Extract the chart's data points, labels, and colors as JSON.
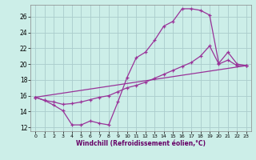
{
  "xlabel": "Windchill (Refroidissement éolien,°C)",
  "background_color": "#cceee8",
  "grid_color": "#aacccc",
  "line_color": "#993399",
  "xlim": [
    -0.5,
    23.5
  ],
  "ylim": [
    11.5,
    27.5
  ],
  "yticks": [
    12,
    14,
    16,
    18,
    20,
    22,
    24,
    26
  ],
  "xticks": [
    0,
    1,
    2,
    3,
    4,
    5,
    6,
    7,
    8,
    9,
    10,
    11,
    12,
    13,
    14,
    15,
    16,
    17,
    18,
    19,
    20,
    21,
    22,
    23
  ],
  "line1_x": [
    0,
    1,
    2,
    3,
    4,
    5,
    6,
    7,
    8,
    9,
    10,
    11,
    12,
    13,
    14,
    15,
    16,
    17,
    18,
    19,
    20,
    21,
    22,
    23
  ],
  "line1_y": [
    15.8,
    15.4,
    14.8,
    14.1,
    12.3,
    12.3,
    12.8,
    12.5,
    12.3,
    15.2,
    18.3,
    20.8,
    21.5,
    23.0,
    24.8,
    25.4,
    27.0,
    27.0,
    26.8,
    26.2,
    20.1,
    21.5,
    20.0,
    19.8
  ],
  "line2_x": [
    0,
    1,
    2,
    3,
    4,
    5,
    6,
    7,
    8,
    9,
    10,
    11,
    12,
    13,
    14,
    15,
    16,
    17,
    18,
    19,
    20,
    21,
    22,
    23
  ],
  "line2_y": [
    15.8,
    15.4,
    15.2,
    14.9,
    15.0,
    15.2,
    15.5,
    15.8,
    16.0,
    16.5,
    17.0,
    17.3,
    17.7,
    18.2,
    18.7,
    19.2,
    19.7,
    20.2,
    21.0,
    22.3,
    20.0,
    20.5,
    19.8,
    19.8
  ],
  "line3_x": [
    0,
    23
  ],
  "line3_y": [
    15.8,
    19.8
  ]
}
